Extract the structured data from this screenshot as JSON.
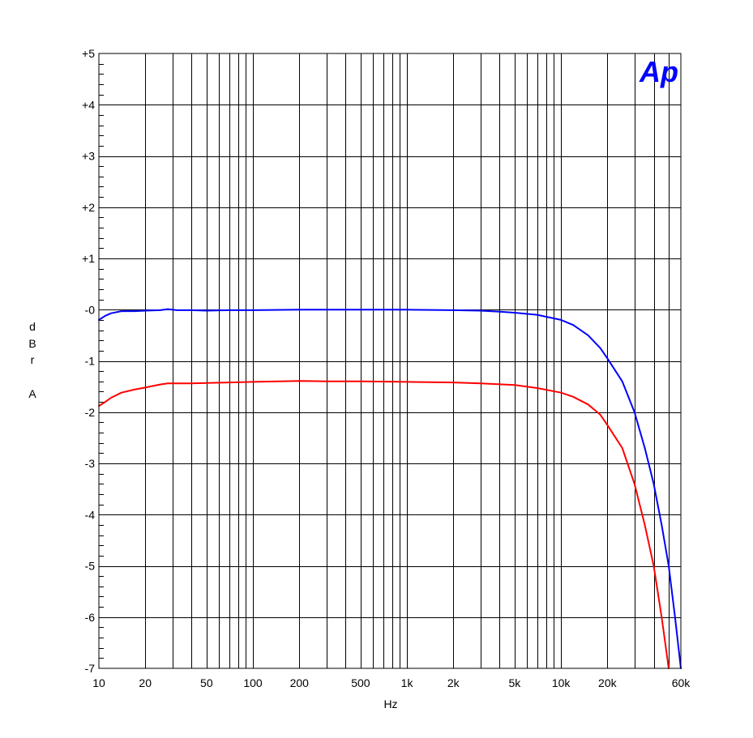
{
  "chart_data": {
    "type": "line",
    "x_scale": "log",
    "xlim": [
      10,
      60000
    ],
    "ylim": [
      -7,
      5
    ],
    "xlabel": "Hz",
    "ylabel": "dBr A",
    "ylabel_chars": [
      "d",
      "B",
      "r",
      "",
      "A"
    ],
    "grid": true,
    "logo": "Ap",
    "logo_color": "#0000ff",
    "x_ticks": [
      {
        "value": 10,
        "label": "10"
      },
      {
        "value": 20,
        "label": "20"
      },
      {
        "value": 50,
        "label": "50"
      },
      {
        "value": 100,
        "label": "100"
      },
      {
        "value": 200,
        "label": "200"
      },
      {
        "value": 500,
        "label": "500"
      },
      {
        "value": 1000,
        "label": "1k"
      },
      {
        "value": 2000,
        "label": "2k"
      },
      {
        "value": 5000,
        "label": "5k"
      },
      {
        "value": 10000,
        "label": "10k"
      },
      {
        "value": 20000,
        "label": "20k"
      },
      {
        "value": 60000,
        "label": "60k"
      }
    ],
    "y_ticks": [
      {
        "value": 5,
        "label": "+5"
      },
      {
        "value": 4,
        "label": "+4"
      },
      {
        "value": 3,
        "label": "+3"
      },
      {
        "value": 2,
        "label": "+2"
      },
      {
        "value": 1,
        "label": "+1"
      },
      {
        "value": 0,
        "label": "-0"
      },
      {
        "value": -1,
        "label": "-1"
      },
      {
        "value": -2,
        "label": "-2"
      },
      {
        "value": -3,
        "label": "-3"
      },
      {
        "value": -4,
        "label": "-4"
      },
      {
        "value": -5,
        "label": "-5"
      },
      {
        "value": -6,
        "label": "-6"
      },
      {
        "value": -7,
        "label": "-7"
      }
    ],
    "series": [
      {
        "color": "#0000ff",
        "points": [
          [
            10,
            -0.2
          ],
          [
            11,
            -0.12
          ],
          [
            12,
            -0.07
          ],
          [
            14,
            -0.03
          ],
          [
            17,
            -0.03
          ],
          [
            20,
            -0.02
          ],
          [
            25,
            -0.01
          ],
          [
            28,
            0.01
          ],
          [
            32,
            -0.01
          ],
          [
            40,
            -0.01
          ],
          [
            50,
            -0.02
          ],
          [
            70,
            -0.01
          ],
          [
            100,
            -0.01
          ],
          [
            200,
            0.0
          ],
          [
            300,
            0.0
          ],
          [
            500,
            0.0
          ],
          [
            1000,
            0.0
          ],
          [
            2000,
            -0.01
          ],
          [
            3000,
            -0.02
          ],
          [
            4000,
            -0.04
          ],
          [
            5000,
            -0.06
          ],
          [
            7000,
            -0.1
          ],
          [
            10000,
            -0.2
          ],
          [
            12000,
            -0.3
          ],
          [
            15000,
            -0.5
          ],
          [
            18000,
            -0.75
          ],
          [
            20000,
            -0.95
          ],
          [
            25000,
            -1.4
          ],
          [
            30000,
            -2.0
          ],
          [
            35000,
            -2.7
          ],
          [
            40000,
            -3.4
          ],
          [
            45000,
            -4.2
          ],
          [
            50000,
            -5.0
          ],
          [
            55000,
            -6.0
          ],
          [
            60000,
            -7.0
          ]
        ]
      },
      {
        "color": "#ff0000",
        "points": [
          [
            10,
            -1.88
          ],
          [
            11,
            -1.8
          ],
          [
            12,
            -1.72
          ],
          [
            14,
            -1.62
          ],
          [
            17,
            -1.56
          ],
          [
            20,
            -1.52
          ],
          [
            25,
            -1.46
          ],
          [
            28,
            -1.44
          ],
          [
            32,
            -1.44
          ],
          [
            40,
            -1.44
          ],
          [
            50,
            -1.43
          ],
          [
            70,
            -1.42
          ],
          [
            100,
            -1.41
          ],
          [
            200,
            -1.39
          ],
          [
            300,
            -1.4
          ],
          [
            500,
            -1.4
          ],
          [
            1000,
            -1.41
          ],
          [
            2000,
            -1.42
          ],
          [
            3000,
            -1.44
          ],
          [
            5000,
            -1.47
          ],
          [
            7000,
            -1.53
          ],
          [
            10000,
            -1.62
          ],
          [
            12000,
            -1.7
          ],
          [
            15000,
            -1.85
          ],
          [
            18000,
            -2.05
          ],
          [
            20000,
            -2.25
          ],
          [
            25000,
            -2.7
          ],
          [
            30000,
            -3.4
          ],
          [
            35000,
            -4.2
          ],
          [
            40000,
            -5.0
          ],
          [
            45000,
            -6.0
          ],
          [
            50000,
            -7.0
          ]
        ]
      }
    ]
  }
}
